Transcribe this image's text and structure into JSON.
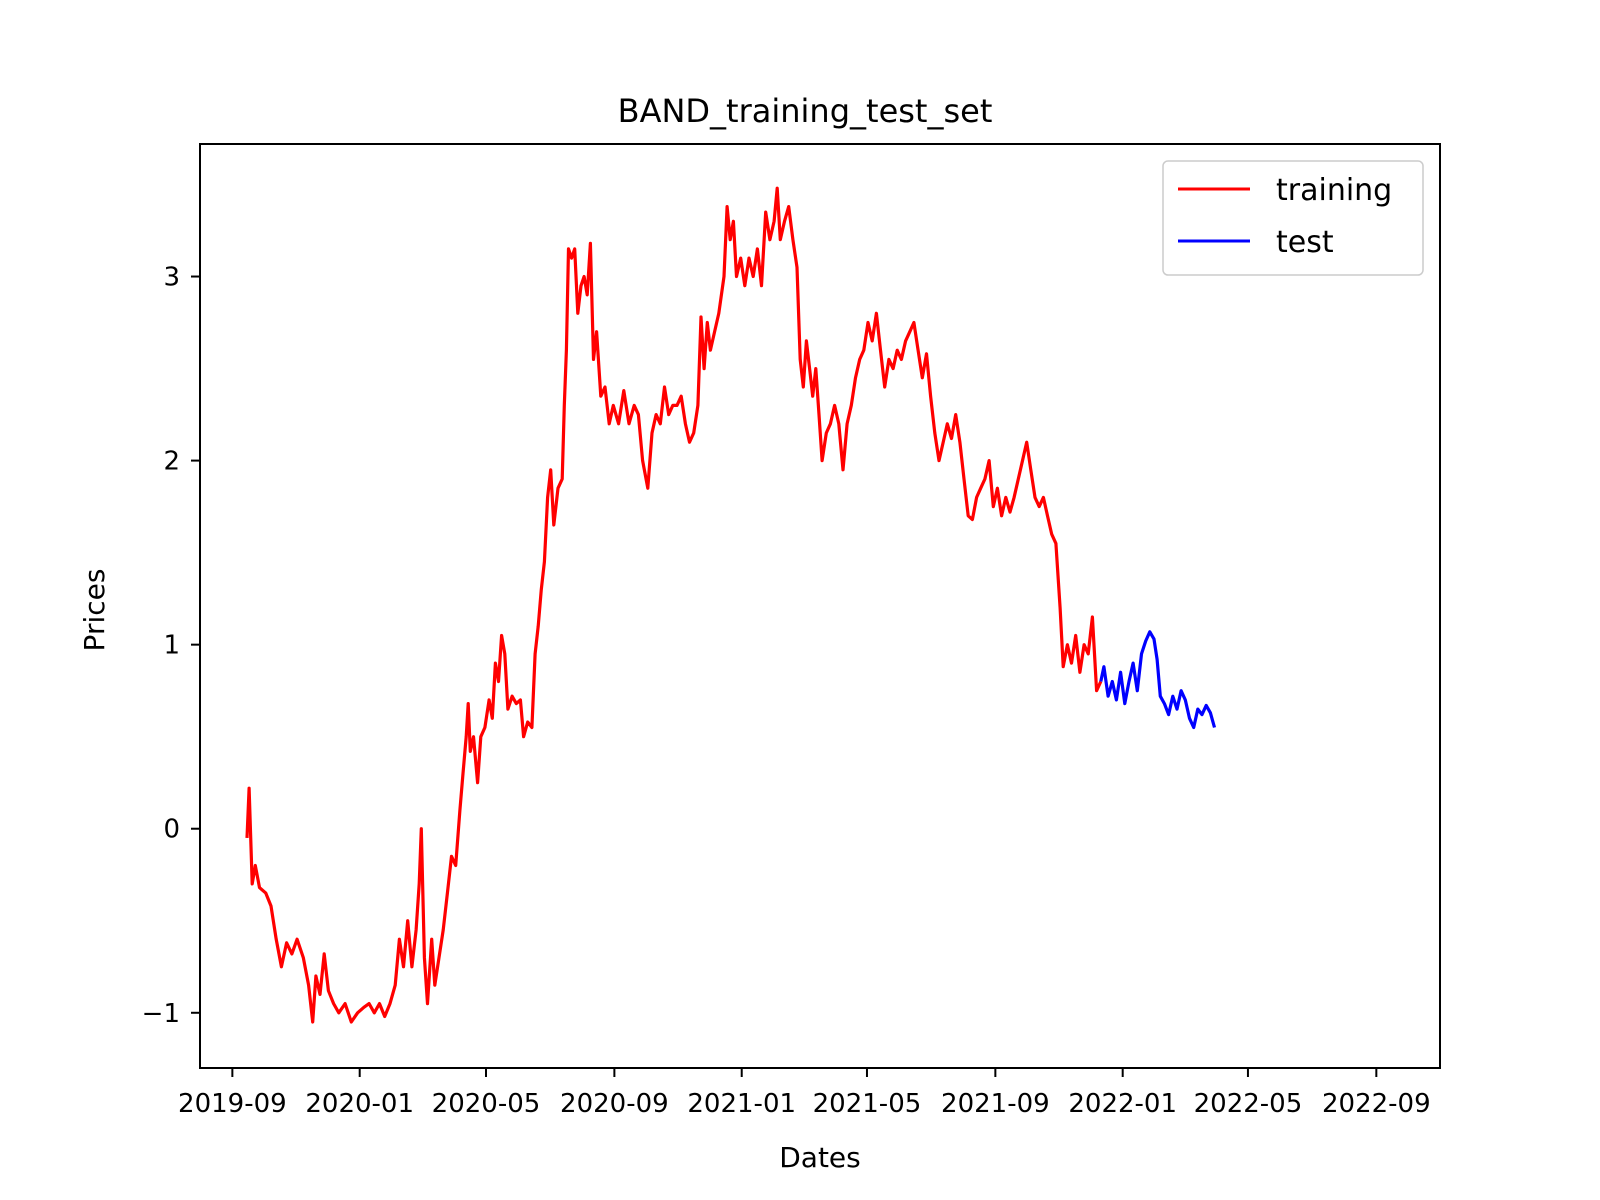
{
  "chart_data": {
    "type": "line",
    "title": "BAND_training_test_set",
    "xlabel": "Dates",
    "ylabel": "Prices",
    "xlim": [
      "2019-08-01",
      "2022-11-01"
    ],
    "ylim": [
      -1.3,
      3.72
    ],
    "x_ticks": [
      "2019-09",
      "2020-01",
      "2020-05",
      "2020-09",
      "2021-01",
      "2021-05",
      "2021-09",
      "2022-01",
      "2022-05",
      "2022-09"
    ],
    "y_ticks": [
      -1,
      0,
      1,
      2,
      3
    ],
    "y_tick_labels": [
      "−1",
      "0",
      "1",
      "2",
      "3"
    ],
    "grid": false,
    "legend": "top-right",
    "series": [
      {
        "name": "training",
        "color": "#ff0000",
        "points": [
          [
            "2019-09-15",
            -0.05
          ],
          [
            "2019-09-17",
            0.22
          ],
          [
            "2019-09-20",
            -0.3
          ],
          [
            "2019-09-23",
            -0.2
          ],
          [
            "2019-09-27",
            -0.32
          ],
          [
            "2019-10-03",
            -0.35
          ],
          [
            "2019-10-08",
            -0.42
          ],
          [
            "2019-10-13",
            -0.6
          ],
          [
            "2019-10-18",
            -0.75
          ],
          [
            "2019-10-23",
            -0.62
          ],
          [
            "2019-10-28",
            -0.68
          ],
          [
            "2019-11-02",
            -0.6
          ],
          [
            "2019-11-08",
            -0.7
          ],
          [
            "2019-11-13",
            -0.85
          ],
          [
            "2019-11-17",
            -1.05
          ],
          [
            "2019-11-20",
            -0.8
          ],
          [
            "2019-11-24",
            -0.9
          ],
          [
            "2019-11-28",
            -0.68
          ],
          [
            "2019-12-02",
            -0.88
          ],
          [
            "2019-12-07",
            -0.95
          ],
          [
            "2019-12-12",
            -1.0
          ],
          [
            "2019-12-18",
            -0.95
          ],
          [
            "2019-12-24",
            -1.05
          ],
          [
            "2019-12-30",
            -1.0
          ],
          [
            "2020-01-05",
            -0.97
          ],
          [
            "2020-01-10",
            -0.95
          ],
          [
            "2020-01-15",
            -1.0
          ],
          [
            "2020-01-20",
            -0.95
          ],
          [
            "2020-01-25",
            -1.02
          ],
          [
            "2020-01-30",
            -0.95
          ],
          [
            "2020-02-04",
            -0.85
          ],
          [
            "2020-02-08",
            -0.6
          ],
          [
            "2020-02-12",
            -0.75
          ],
          [
            "2020-02-16",
            -0.5
          ],
          [
            "2020-02-20",
            -0.75
          ],
          [
            "2020-02-24",
            -0.55
          ],
          [
            "2020-02-27",
            -0.3
          ],
          [
            "2020-02-29",
            0.0
          ],
          [
            "2020-03-03",
            -0.7
          ],
          [
            "2020-03-06",
            -0.95
          ],
          [
            "2020-03-10",
            -0.6
          ],
          [
            "2020-03-13",
            -0.85
          ],
          [
            "2020-03-17",
            -0.7
          ],
          [
            "2020-03-21",
            -0.55
          ],
          [
            "2020-03-25",
            -0.35
          ],
          [
            "2020-03-29",
            -0.15
          ],
          [
            "2020-04-02",
            -0.2
          ],
          [
            "2020-04-06",
            0.1
          ],
          [
            "2020-04-09",
            0.3
          ],
          [
            "2020-04-12",
            0.5
          ],
          [
            "2020-04-14",
            0.68
          ],
          [
            "2020-04-16",
            0.42
          ],
          [
            "2020-04-19",
            0.5
          ],
          [
            "2020-04-23",
            0.25
          ],
          [
            "2020-04-26",
            0.5
          ],
          [
            "2020-04-30",
            0.55
          ],
          [
            "2020-05-04",
            0.7
          ],
          [
            "2020-05-07",
            0.6
          ],
          [
            "2020-05-10",
            0.9
          ],
          [
            "2020-05-13",
            0.8
          ],
          [
            "2020-05-16",
            1.05
          ],
          [
            "2020-05-19",
            0.95
          ],
          [
            "2020-05-22",
            0.65
          ],
          [
            "2020-05-26",
            0.72
          ],
          [
            "2020-05-30",
            0.68
          ],
          [
            "2020-06-03",
            0.7
          ],
          [
            "2020-06-06",
            0.5
          ],
          [
            "2020-06-10",
            0.58
          ],
          [
            "2020-06-14",
            0.55
          ],
          [
            "2020-06-17",
            0.95
          ],
          [
            "2020-06-20",
            1.1
          ],
          [
            "2020-06-23",
            1.3
          ],
          [
            "2020-06-26",
            1.45
          ],
          [
            "2020-06-29",
            1.8
          ],
          [
            "2020-07-02",
            1.95
          ],
          [
            "2020-07-05",
            1.65
          ],
          [
            "2020-07-09",
            1.85
          ],
          [
            "2020-07-13",
            1.9
          ],
          [
            "2020-07-15",
            2.3
          ],
          [
            "2020-07-17",
            2.6
          ],
          [
            "2020-07-19",
            3.15
          ],
          [
            "2020-07-22",
            3.1
          ],
          [
            "2020-07-25",
            3.15
          ],
          [
            "2020-07-28",
            2.8
          ],
          [
            "2020-07-31",
            2.95
          ],
          [
            "2020-08-03",
            3.0
          ],
          [
            "2020-08-06",
            2.9
          ],
          [
            "2020-08-09",
            3.18
          ],
          [
            "2020-08-12",
            2.55
          ],
          [
            "2020-08-15",
            2.7
          ],
          [
            "2020-08-19",
            2.35
          ],
          [
            "2020-08-23",
            2.4
          ],
          [
            "2020-08-27",
            2.2
          ],
          [
            "2020-08-31",
            2.3
          ],
          [
            "2020-09-05",
            2.2
          ],
          [
            "2020-09-10",
            2.38
          ],
          [
            "2020-09-15",
            2.2
          ],
          [
            "2020-09-20",
            2.3
          ],
          [
            "2020-09-24",
            2.25
          ],
          [
            "2020-09-28",
            2.0
          ],
          [
            "2020-10-03",
            1.85
          ],
          [
            "2020-10-07",
            2.15
          ],
          [
            "2020-10-11",
            2.25
          ],
          [
            "2020-10-15",
            2.2
          ],
          [
            "2020-10-19",
            2.4
          ],
          [
            "2020-10-23",
            2.25
          ],
          [
            "2020-10-27",
            2.3
          ],
          [
            "2020-10-31",
            2.3
          ],
          [
            "2020-11-04",
            2.35
          ],
          [
            "2020-11-08",
            2.2
          ],
          [
            "2020-11-12",
            2.1
          ],
          [
            "2020-11-16",
            2.15
          ],
          [
            "2020-11-20",
            2.3
          ],
          [
            "2020-11-23",
            2.78
          ],
          [
            "2020-11-26",
            2.5
          ],
          [
            "2020-11-29",
            2.75
          ],
          [
            "2020-12-02",
            2.6
          ],
          [
            "2020-12-06",
            2.7
          ],
          [
            "2020-12-10",
            2.8
          ],
          [
            "2020-12-15",
            3.0
          ],
          [
            "2020-12-18",
            3.38
          ],
          [
            "2020-12-21",
            3.2
          ],
          [
            "2020-12-24",
            3.3
          ],
          [
            "2020-12-27",
            3.0
          ],
          [
            "2020-12-31",
            3.1
          ],
          [
            "2021-01-04",
            2.95
          ],
          [
            "2021-01-08",
            3.1
          ],
          [
            "2021-01-12",
            3.0
          ],
          [
            "2021-01-16",
            3.15
          ],
          [
            "2021-01-20",
            2.95
          ],
          [
            "2021-01-24",
            3.35
          ],
          [
            "2021-01-28",
            3.2
          ],
          [
            "2021-02-01",
            3.3
          ],
          [
            "2021-02-04",
            3.48
          ],
          [
            "2021-02-07",
            3.2
          ],
          [
            "2021-02-11",
            3.3
          ],
          [
            "2021-02-15",
            3.38
          ],
          [
            "2021-02-19",
            3.2
          ],
          [
            "2021-02-23",
            3.05
          ],
          [
            "2021-02-26",
            2.55
          ],
          [
            "2021-03-01",
            2.4
          ],
          [
            "2021-03-04",
            2.65
          ],
          [
            "2021-03-07",
            2.5
          ],
          [
            "2021-03-10",
            2.35
          ],
          [
            "2021-03-13",
            2.5
          ],
          [
            "2021-03-16",
            2.25
          ],
          [
            "2021-03-19",
            2.0
          ],
          [
            "2021-03-23",
            2.15
          ],
          [
            "2021-03-27",
            2.2
          ],
          [
            "2021-03-31",
            2.3
          ],
          [
            "2021-04-04",
            2.2
          ],
          [
            "2021-04-08",
            1.95
          ],
          [
            "2021-04-12",
            2.2
          ],
          [
            "2021-04-16",
            2.3
          ],
          [
            "2021-04-20",
            2.45
          ],
          [
            "2021-04-24",
            2.55
          ],
          [
            "2021-04-28",
            2.6
          ],
          [
            "2021-05-02",
            2.75
          ],
          [
            "2021-05-06",
            2.65
          ],
          [
            "2021-05-10",
            2.8
          ],
          [
            "2021-05-14",
            2.6
          ],
          [
            "2021-05-18",
            2.4
          ],
          [
            "2021-05-22",
            2.55
          ],
          [
            "2021-05-26",
            2.5
          ],
          [
            "2021-05-30",
            2.6
          ],
          [
            "2021-06-03",
            2.55
          ],
          [
            "2021-06-07",
            2.65
          ],
          [
            "2021-06-11",
            2.7
          ],
          [
            "2021-06-15",
            2.75
          ],
          [
            "2021-06-19",
            2.6
          ],
          [
            "2021-06-23",
            2.45
          ],
          [
            "2021-06-27",
            2.58
          ],
          [
            "2021-07-01",
            2.35
          ],
          [
            "2021-07-05",
            2.15
          ],
          [
            "2021-07-09",
            2.0
          ],
          [
            "2021-07-13",
            2.1
          ],
          [
            "2021-07-17",
            2.2
          ],
          [
            "2021-07-21",
            2.12
          ],
          [
            "2021-07-25",
            2.25
          ],
          [
            "2021-07-29",
            2.1
          ],
          [
            "2021-08-02",
            1.9
          ],
          [
            "2021-08-06",
            1.7
          ],
          [
            "2021-08-10",
            1.68
          ],
          [
            "2021-08-14",
            1.8
          ],
          [
            "2021-08-18",
            1.85
          ],
          [
            "2021-08-22",
            1.9
          ],
          [
            "2021-08-26",
            2.0
          ],
          [
            "2021-08-30",
            1.75
          ],
          [
            "2021-09-03",
            1.85
          ],
          [
            "2021-09-07",
            1.7
          ],
          [
            "2021-09-11",
            1.8
          ],
          [
            "2021-09-15",
            1.72
          ],
          [
            "2021-09-19",
            1.8
          ],
          [
            "2021-09-23",
            1.9
          ],
          [
            "2021-09-27",
            2.0
          ],
          [
            "2021-10-01",
            2.1
          ],
          [
            "2021-10-05",
            1.95
          ],
          [
            "2021-10-09",
            1.8
          ],
          [
            "2021-10-13",
            1.75
          ],
          [
            "2021-10-17",
            1.8
          ],
          [
            "2021-10-21",
            1.7
          ],
          [
            "2021-10-25",
            1.6
          ],
          [
            "2021-10-29",
            1.55
          ],
          [
            "2021-11-02",
            1.2
          ],
          [
            "2021-11-05",
            0.88
          ],
          [
            "2021-11-09",
            1.0
          ],
          [
            "2021-11-13",
            0.9
          ],
          [
            "2021-11-17",
            1.05
          ],
          [
            "2021-11-21",
            0.85
          ],
          [
            "2021-11-25",
            1.0
          ],
          [
            "2021-11-29",
            0.95
          ],
          [
            "2021-12-03",
            1.15
          ],
          [
            "2021-12-07",
            0.75
          ],
          [
            "2021-12-11",
            0.8
          ]
        ]
      },
      {
        "name": "test",
        "color": "#0000ff",
        "points": [
          [
            "2021-12-11",
            0.8
          ],
          [
            "2021-12-14",
            0.88
          ],
          [
            "2021-12-18",
            0.72
          ],
          [
            "2021-12-22",
            0.8
          ],
          [
            "2021-12-26",
            0.7
          ],
          [
            "2021-12-30",
            0.85
          ],
          [
            "2022-01-03",
            0.68
          ],
          [
            "2022-01-07",
            0.8
          ],
          [
            "2022-01-11",
            0.9
          ],
          [
            "2022-01-15",
            0.75
          ],
          [
            "2022-01-19",
            0.95
          ],
          [
            "2022-01-23",
            1.02
          ],
          [
            "2022-01-27",
            1.07
          ],
          [
            "2022-01-31",
            1.03
          ],
          [
            "2022-02-03",
            0.92
          ],
          [
            "2022-02-06",
            0.72
          ],
          [
            "2022-02-10",
            0.68
          ],
          [
            "2022-02-14",
            0.62
          ],
          [
            "2022-02-18",
            0.72
          ],
          [
            "2022-02-22",
            0.65
          ],
          [
            "2022-02-26",
            0.75
          ],
          [
            "2022-03-02",
            0.7
          ],
          [
            "2022-03-06",
            0.6
          ],
          [
            "2022-03-10",
            0.55
          ],
          [
            "2022-03-14",
            0.65
          ],
          [
            "2022-03-18",
            0.62
          ],
          [
            "2022-03-22",
            0.67
          ],
          [
            "2022-03-26",
            0.63
          ],
          [
            "2022-03-30",
            0.55
          ]
        ]
      }
    ]
  }
}
